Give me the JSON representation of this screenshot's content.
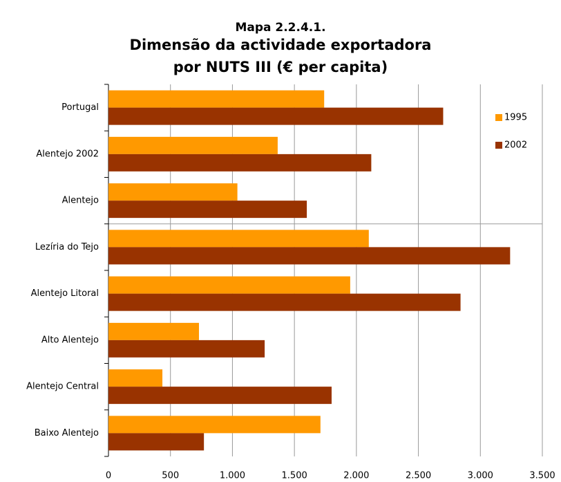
{
  "chart_data": {
    "type": "hbar",
    "label": "Mapa 2.2.4.1.",
    "title": [
      "Dimensão da actividade exportadora",
      "por NUTS III (€ per capita)"
    ],
    "categories": [
      "Portugal",
      "Alentejo 2002",
      "Alentejo",
      "Lezíria do Tejo",
      "Alentejo Litoral",
      "Alto Alentejo",
      "Alentejo Central",
      "Baixo Alentejo"
    ],
    "series": [
      {
        "name": "1995",
        "color": "#ff9900",
        "values": [
          1740,
          1365,
          1040,
          2100,
          1950,
          730,
          435,
          1710
        ]
      },
      {
        "name": "2002",
        "color": "#993300",
        "values": [
          2700,
          2120,
          1600,
          3240,
          2840,
          1260,
          1800,
          770
        ]
      }
    ],
    "xlim": [
      0,
      3500
    ],
    "xticks": [
      0,
      500,
      {
        "value": 1000,
        "label": "1.000"
      },
      {
        "value": 1500,
        "label": "1.500"
      },
      {
        "value": 2000,
        "label": "2.000"
      },
      {
        "value": 2500,
        "label": "2.500"
      },
      {
        "value": 3000,
        "label": "3.000"
      },
      {
        "value": 3500,
        "label": "3.500"
      }
    ],
    "grid": true,
    "legend": "upper right"
  }
}
